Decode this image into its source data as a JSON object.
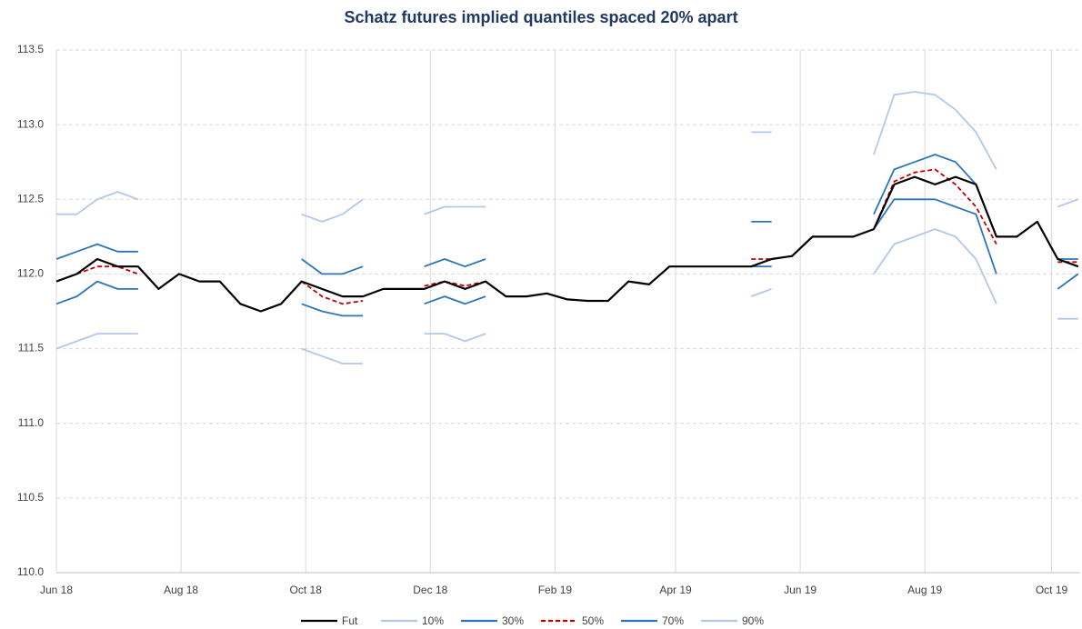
{
  "chart_data": {
    "type": "line",
    "title": "Schatz futures implied quantiles spaced 20% apart",
    "x": [
      0,
      10,
      20,
      30,
      40,
      50,
      60,
      70,
      80,
      90,
      100,
      110,
      120,
      130,
      140,
      150,
      160,
      170,
      180,
      190,
      200,
      210,
      220,
      230,
      240,
      250,
      260,
      270,
      280,
      290,
      300,
      310,
      320,
      330,
      340,
      350,
      360,
      370,
      380,
      390,
      400,
      410,
      420,
      430,
      440,
      450,
      460,
      470,
      480,
      490,
      500
    ],
    "xlim": [
      0,
      501
    ],
    "xticks": [
      {
        "value": 0,
        "label": "Jun 18"
      },
      {
        "value": 61,
        "label": "Aug 18"
      },
      {
        "value": 122,
        "label": "Oct 18"
      },
      {
        "value": 183,
        "label": "Dec 18"
      },
      {
        "value": 244,
        "label": "Feb 19"
      },
      {
        "value": 303,
        "label": "Apr 19"
      },
      {
        "value": 364,
        "label": "Jun 19"
      },
      {
        "value": 425,
        "label": "Aug 19"
      },
      {
        "value": 487,
        "label": "Oct 19"
      }
    ],
    "ylim": [
      110.0,
      113.5
    ],
    "yticks": [
      {
        "value": 110.0,
        "label": "110.0"
      },
      110.5,
      {
        "value": 111.0,
        "label": "111.0"
      },
      111.5,
      {
        "value": 112.0,
        "label": "112.0"
      },
      112.5,
      {
        "value": 113.0,
        "label": "113.0"
      },
      113.5
    ],
    "grid": true,
    "legend": "bottom",
    "series": [
      {
        "name": "Fut",
        "color": "#000000",
        "dash": false,
        "values": [
          111.95,
          112.0,
          112.1,
          112.05,
          112.05,
          111.9,
          112.0,
          111.95,
          111.95,
          111.8,
          111.75,
          111.8,
          111.95,
          111.9,
          111.85,
          111.85,
          111.9,
          111.9,
          111.9,
          111.95,
          111.9,
          111.95,
          111.85,
          111.85,
          111.87,
          111.83,
          111.82,
          111.82,
          111.95,
          111.93,
          112.05,
          112.05,
          112.05,
          112.05,
          112.05,
          112.1,
          112.12,
          112.25,
          112.25,
          112.25,
          112.3,
          112.6,
          112.65,
          112.6,
          112.65,
          112.6,
          112.25,
          112.25,
          112.35,
          112.1,
          112.05
        ]
      },
      {
        "name": "10%",
        "color": "#b4c7e7",
        "dash": false,
        "values": [
          111.5,
          111.55,
          111.6,
          111.6,
          111.6,
          null,
          null,
          null,
          null,
          null,
          null,
          null,
          111.5,
          111.45,
          111.4,
          111.4,
          null,
          null,
          111.6,
          111.6,
          111.55,
          111.6,
          null,
          null,
          null,
          null,
          null,
          null,
          null,
          null,
          null,
          null,
          null,
          null,
          111.85,
          111.9,
          null,
          null,
          null,
          null,
          112.0,
          112.2,
          112.25,
          112.3,
          112.25,
          112.1,
          111.8,
          null,
          null,
          111.7,
          111.7
        ]
      },
      {
        "name": "30%",
        "color": "#2e75b6",
        "dash": false,
        "values": [
          111.8,
          111.85,
          111.95,
          111.9,
          111.9,
          null,
          null,
          null,
          null,
          null,
          null,
          null,
          111.8,
          111.75,
          111.72,
          111.72,
          null,
          null,
          111.8,
          111.85,
          111.8,
          111.85,
          null,
          null,
          null,
          null,
          null,
          null,
          null,
          null,
          null,
          null,
          null,
          null,
          112.05,
          112.05,
          null,
          null,
          null,
          null,
          112.3,
          112.5,
          112.5,
          112.5,
          112.45,
          112.4,
          112.0,
          null,
          null,
          111.9,
          112.0
        ]
      },
      {
        "name": "50%",
        "color": "#c00000",
        "dash": true,
        "values": [
          111.95,
          112.0,
          112.05,
          112.05,
          112.0,
          null,
          null,
          null,
          null,
          null,
          null,
          null,
          111.95,
          111.85,
          111.8,
          111.82,
          null,
          null,
          111.92,
          111.95,
          111.92,
          111.95,
          null,
          null,
          null,
          null,
          null,
          null,
          null,
          null,
          null,
          null,
          null,
          null,
          112.1,
          112.1,
          null,
          null,
          null,
          null,
          112.3,
          112.62,
          112.68,
          112.7,
          112.6,
          112.45,
          112.2,
          null,
          null,
          112.08,
          112.08
        ]
      },
      {
        "name": "70%",
        "color": "#2e75b6",
        "dash": false,
        "values": [
          112.1,
          112.15,
          112.2,
          112.15,
          112.15,
          null,
          null,
          null,
          null,
          null,
          null,
          null,
          112.1,
          112.0,
          112.0,
          112.05,
          null,
          null,
          112.05,
          112.1,
          112.05,
          112.1,
          null,
          null,
          null,
          null,
          null,
          null,
          null,
          null,
          null,
          null,
          null,
          null,
          112.35,
          112.35,
          null,
          null,
          null,
          null,
          112.4,
          112.7,
          112.75,
          112.8,
          112.75,
          112.6,
          112.25,
          null,
          null,
          112.1,
          112.1
        ]
      },
      {
        "name": "90%",
        "color": "#b4c7e7",
        "dash": false,
        "values": [
          112.4,
          112.4,
          112.5,
          112.55,
          112.5,
          null,
          null,
          null,
          null,
          null,
          null,
          null,
          112.4,
          112.35,
          112.4,
          112.5,
          null,
          null,
          112.4,
          112.45,
          112.45,
          112.45,
          null,
          null,
          null,
          null,
          null,
          null,
          null,
          null,
          null,
          null,
          null,
          null,
          112.95,
          112.95,
          null,
          null,
          null,
          null,
          112.8,
          113.2,
          113.22,
          113.2,
          113.1,
          112.95,
          112.7,
          null,
          null,
          112.45,
          112.5
        ]
      }
    ]
  }
}
